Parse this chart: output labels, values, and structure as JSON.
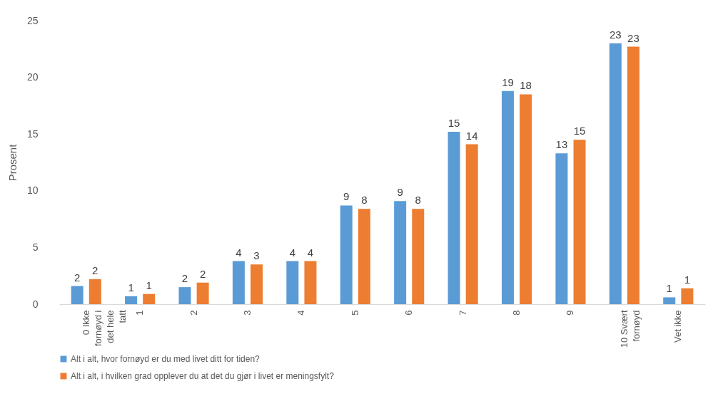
{
  "chart_data": {
    "type": "bar",
    "ylabel": "Prosent",
    "categories": [
      "0 Ikke fornøyd i det hele tatt",
      "1",
      "2",
      "3",
      "4",
      "5",
      "6",
      "7",
      "8",
      "9",
      "10 Svært fornøyd",
      "Vet ikke"
    ],
    "series": [
      {
        "name": "Alt i alt, hvor fornøyd er du med livet ditt for tiden?",
        "color": "#5b9bd5",
        "values": [
          1.6,
          0.7,
          1.5,
          3.8,
          3.8,
          8.7,
          9.1,
          15.2,
          18.8,
          13.3,
          23.0,
          0.6
        ],
        "value_labels": [
          "2",
          "1",
          "2",
          "4",
          "4",
          "9",
          "9",
          "15",
          "19",
          "13",
          "23",
          "1"
        ]
      },
      {
        "name": "Alt i alt, i hvilken grad opplever du at det du gjør i livet er meningsfylt?",
        "color": "#ed7d31",
        "values": [
          2.2,
          0.9,
          1.9,
          3.5,
          3.8,
          8.4,
          8.4,
          14.1,
          18.5,
          14.5,
          22.7,
          1.4
        ],
        "value_labels": [
          "2",
          "1",
          "2",
          "3",
          "4",
          "8",
          "8",
          "14",
          "18",
          "15",
          "23",
          "1"
        ]
      }
    ],
    "ylim": [
      0,
      25
    ],
    "yticks": [
      0,
      5,
      10,
      15,
      20,
      25
    ],
    "grid": false,
    "legend": "bottom"
  }
}
